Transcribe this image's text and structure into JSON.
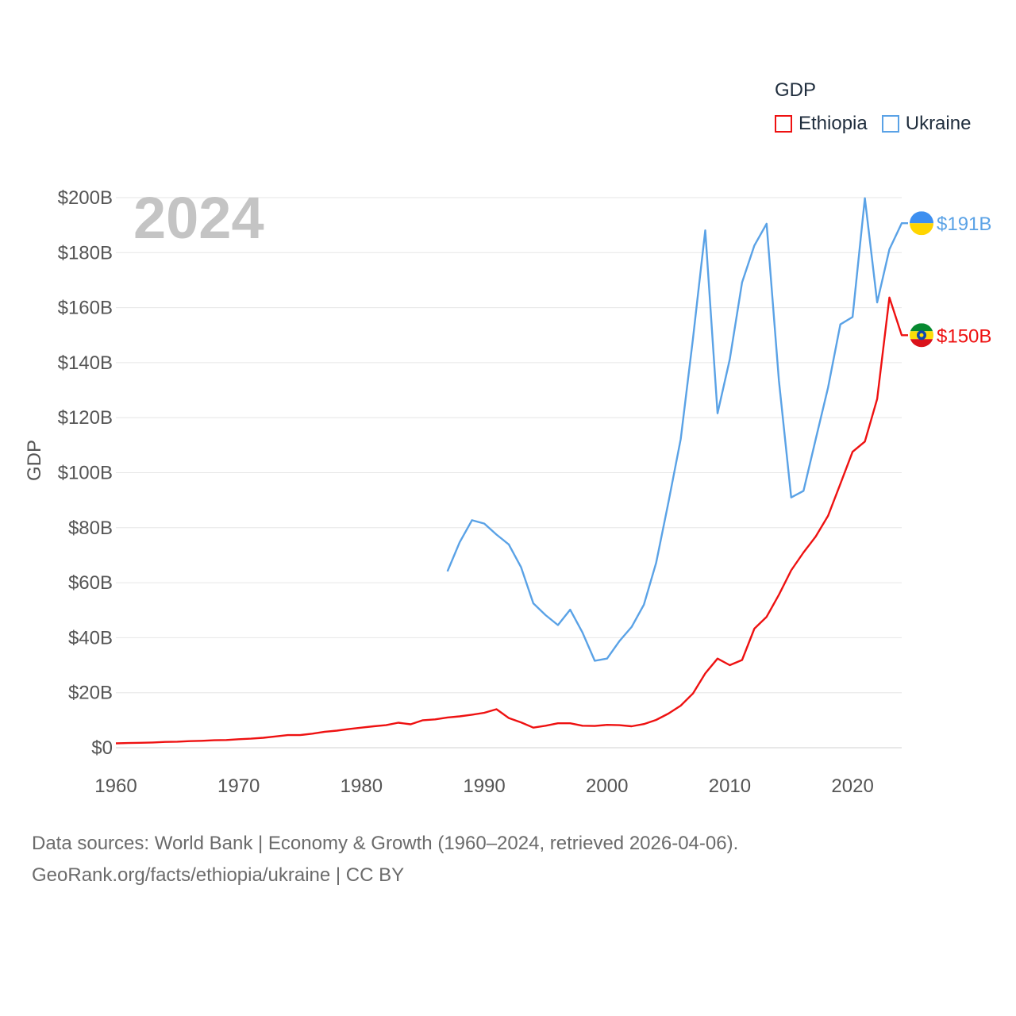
{
  "legend": {
    "title": "GDP",
    "items": [
      {
        "name": "Ethiopia",
        "color": "#ee1111"
      },
      {
        "name": "Ukraine",
        "color": "#5aa2e6"
      }
    ]
  },
  "year_watermark": "2024",
  "footer": {
    "line1": "Data sources: World Bank | Economy & Growth (1960–2024, retrieved 2026-04-06).",
    "line2": "GeoRank.org/facts/ethiopia/ukraine | CC BY"
  },
  "chart_data": {
    "type": "line",
    "title": "",
    "xlabel": "",
    "ylabel": "GDP",
    "xlim": [
      1960,
      2024
    ],
    "ylim": [
      0,
      200
    ],
    "unit": "billion USD",
    "x_ticks": [
      1960,
      1970,
      1980,
      1990,
      2000,
      2010,
      2020
    ],
    "y_ticks": [
      0,
      20,
      40,
      60,
      80,
      100,
      120,
      140,
      160,
      180,
      200
    ],
    "y_tick_labels": [
      "$0",
      "$20B",
      "$40B",
      "$60B",
      "$80B",
      "$100B",
      "$120B",
      "$140B",
      "$160B",
      "$180B",
      "$200B"
    ],
    "grid": true,
    "series": [
      {
        "name": "Ethiopia",
        "color": "#ee1111",
        "end_label": "$150B",
        "flag_colors": [
          "#078930",
          "#fcdd09",
          "#da121a",
          "#0f47af"
        ],
        "start_year": 1960,
        "values": [
          1.6,
          1.7,
          1.8,
          1.9,
          2.1,
          2.2,
          2.4,
          2.5,
          2.7,
          2.8,
          3.1,
          3.3,
          3.6,
          4.1,
          4.6,
          4.6,
          5.1,
          5.8,
          6.2,
          6.8,
          7.3,
          7.8,
          8.2,
          9.1,
          8.5,
          10.0,
          10.3,
          11.0,
          11.4,
          12.0,
          12.7,
          14.0,
          10.8,
          9.2,
          7.3,
          8.0,
          8.9,
          8.9,
          8.0,
          7.9,
          8.3,
          8.2,
          7.8,
          8.6,
          10.1,
          12.4,
          15.3,
          19.7,
          27.0,
          32.4,
          30.0,
          31.9,
          43.3,
          47.6,
          55.6,
          64.5,
          71.0,
          76.8,
          84.3,
          95.9,
          107.6,
          111.3,
          126.8,
          163.7,
          150.0
        ]
      },
      {
        "name": "Ukraine",
        "color": "#5aa2e6",
        "end_label": "$191B",
        "flag_colors": [
          "#3d8ff0",
          "#ffd500"
        ],
        "start_year": 1987,
        "values": [
          64.1,
          74.7,
          82.7,
          81.5,
          77.5,
          73.9,
          65.6,
          52.5,
          48.2,
          44.6,
          50.2,
          41.9,
          31.6,
          32.4,
          38.7,
          43.9,
          52.0,
          67.2,
          89.2,
          112.2,
          148.7,
          188.1,
          121.6,
          141.2,
          169.2,
          182.6,
          190.5,
          133.5,
          91.0,
          93.4,
          112.2,
          130.9,
          153.9,
          156.6,
          199.8,
          161.9,
          181.2,
          190.7
        ]
      }
    ]
  }
}
